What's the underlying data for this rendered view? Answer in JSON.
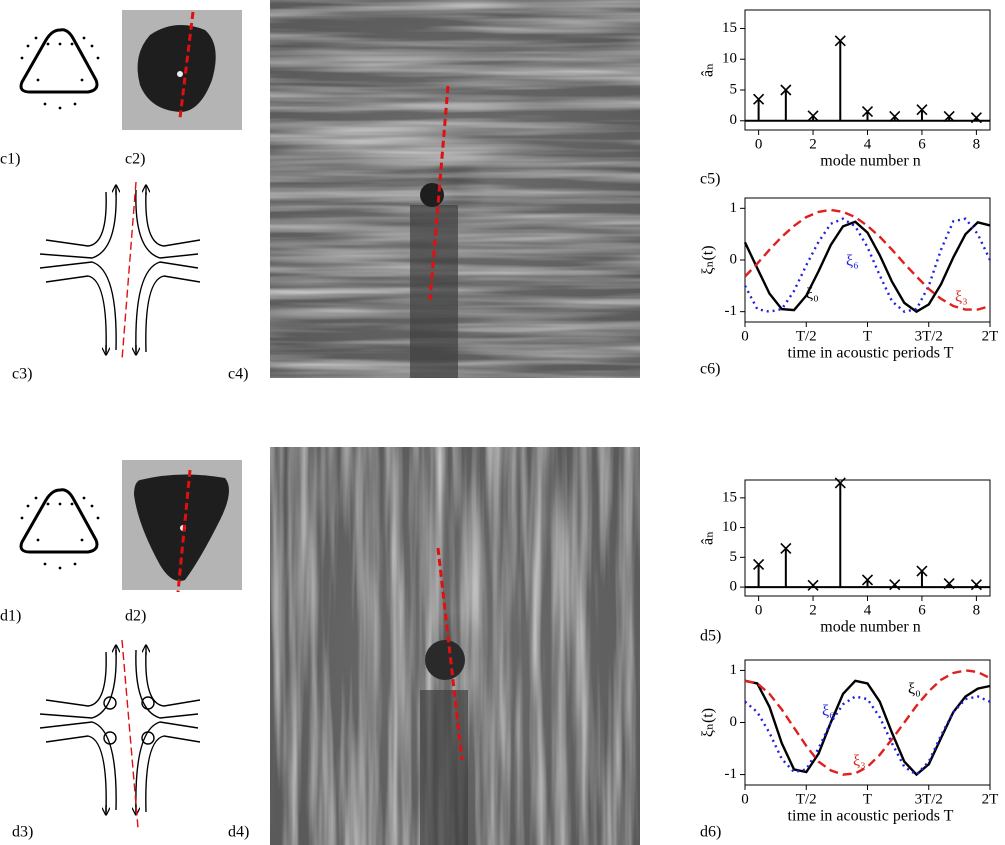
{
  "panel_labels": [
    "c1)",
    "c2)",
    "c3)",
    "c4)",
    "c5)",
    "c6)",
    "d1)",
    "d2)",
    "d3)",
    "d4)",
    "d5)",
    "d6)"
  ],
  "chart_data": [
    {
      "type": "stem",
      "ylabel": "âₙ",
      "xlabel": "mode number n",
      "color": "#000000",
      "x": [
        0,
        1,
        2,
        3,
        4,
        5,
        6,
        7,
        8
      ],
      "values": [
        3.5,
        5,
        0.8,
        13,
        1.5,
        0.7,
        1.8,
        0.7,
        0.5
      ],
      "xlim": [
        -0.5,
        8.5
      ],
      "xticks": [
        0,
        2,
        4,
        6,
        8
      ],
      "ylim": [
        -1.5,
        18
      ],
      "yticks": [
        0,
        5,
        10,
        15
      ]
    },
    {
      "type": "line",
      "ylabel": "ξₙ(t)",
      "xlabel": "time in acoustic periods T",
      "x": [
        0,
        0.1,
        0.2,
        0.3,
        0.4,
        0.5,
        0.6,
        0.7,
        0.8,
        0.9,
        1.0,
        1.1,
        1.2,
        1.3,
        1.4,
        1.5,
        1.6,
        1.7,
        1.8,
        1.9,
        2.0
      ],
      "xlim": [
        0,
        2
      ],
      "xticks": [
        0,
        {
          "value": 0.5,
          "label": "T/2"
        },
        {
          "value": 1,
          "label": "T"
        },
        {
          "value": 1.5,
          "label": "3T/2"
        },
        {
          "value": 2,
          "label": "2T"
        }
      ],
      "ylim": [
        -1.2,
        1.2
      ],
      "yticks": [
        -1,
        0,
        1
      ],
      "series": [
        {
          "name": "ξ₀",
          "color": "#000000",
          "style": "solid",
          "values": [
            0.34,
            -0.16,
            -0.65,
            -0.95,
            -0.97,
            -0.69,
            -0.22,
            0.29,
            0.65,
            0.74,
            0.53,
            0.09,
            -0.42,
            -0.83,
            -1.0,
            -0.86,
            -0.47,
            0.05,
            0.5,
            0.73,
            0.67
          ]
        },
        {
          "name": "ξ₆",
          "color": "#1f1fe0",
          "style": "dotted",
          "values": [
            -0.5,
            -0.95,
            -1.0,
            -0.95,
            -0.6,
            -0.1,
            0.35,
            0.7,
            0.8,
            0.65,
            0.25,
            -0.3,
            -0.8,
            -1.0,
            -0.95,
            -0.5,
            0.2,
            0.75,
            0.8,
            0.5,
            0.0
          ]
        },
        {
          "name": "ξ₃",
          "color": "#e01f1f",
          "style": "dashed",
          "values": [
            -0.32,
            -0.07,
            0.2,
            0.45,
            0.66,
            0.83,
            0.93,
            0.97,
            0.93,
            0.83,
            0.66,
            0.45,
            0.2,
            -0.07,
            -0.32,
            -0.56,
            -0.75,
            -0.89,
            -0.96,
            -0.96,
            -0.89
          ]
        }
      ]
    },
    {
      "type": "stem",
      "ylabel": "âₙ",
      "xlabel": "mode number n",
      "color": "#000000",
      "x": [
        0,
        1,
        2,
        3,
        4,
        5,
        6,
        7,
        8
      ],
      "values": [
        3.8,
        6.5,
        0.3,
        17.5,
        1.2,
        0.4,
        2.7,
        0.6,
        0.4
      ],
      "xlim": [
        -0.5,
        8.5
      ],
      "xticks": [
        0,
        2,
        4,
        6,
        8
      ],
      "ylim": [
        -1.5,
        18
      ],
      "yticks": [
        0,
        5,
        10,
        15
      ]
    },
    {
      "type": "line",
      "ylabel": "ξₙ(t)",
      "xlabel": "time in acoustic periods T",
      "x": [
        0,
        0.1,
        0.2,
        0.3,
        0.4,
        0.5,
        0.6,
        0.7,
        0.8,
        0.9,
        1.0,
        1.1,
        1.2,
        1.3,
        1.4,
        1.5,
        1.6,
        1.7,
        1.8,
        1.9,
        2.0
      ],
      "xlim": [
        0,
        2
      ],
      "xticks": [
        0,
        {
          "value": 0.5,
          "label": "T/2"
        },
        {
          "value": 1,
          "label": "T"
        },
        {
          "value": 1.5,
          "label": "3T/2"
        },
        {
          "value": 2,
          "label": "2T"
        }
      ],
      "ylim": [
        -1.2,
        1.2
      ],
      "yticks": [
        -1,
        0,
        1
      ],
      "series": [
        {
          "name": "ξ₀",
          "color": "#000000",
          "style": "solid",
          "values": [
            0.8,
            0.75,
            0.3,
            -0.4,
            -0.9,
            -0.95,
            -0.6,
            0.0,
            0.55,
            0.8,
            0.75,
            0.4,
            -0.2,
            -0.75,
            -1.0,
            -0.8,
            -0.3,
            0.2,
            0.5,
            0.65,
            0.7
          ]
        },
        {
          "name": "ξ₆",
          "color": "#1f1fe0",
          "style": "dotted",
          "values": [
            0.4,
            0.2,
            -0.2,
            -0.7,
            -0.95,
            -0.9,
            -0.5,
            0.0,
            0.35,
            0.5,
            0.45,
            0.1,
            -0.4,
            -0.85,
            -1.0,
            -0.75,
            -0.25,
            0.2,
            0.45,
            0.5,
            0.4
          ]
        },
        {
          "name": "ξ₃",
          "color": "#e01f1f",
          "style": "dashed",
          "values": [
            0.8,
            0.75,
            0.55,
            0.25,
            -0.1,
            -0.45,
            -0.75,
            -0.92,
            -1.0,
            -0.98,
            -0.85,
            -0.62,
            -0.32,
            0.0,
            0.32,
            0.6,
            0.82,
            0.95,
            1.0,
            0.97,
            0.85
          ]
        }
      ]
    }
  ]
}
